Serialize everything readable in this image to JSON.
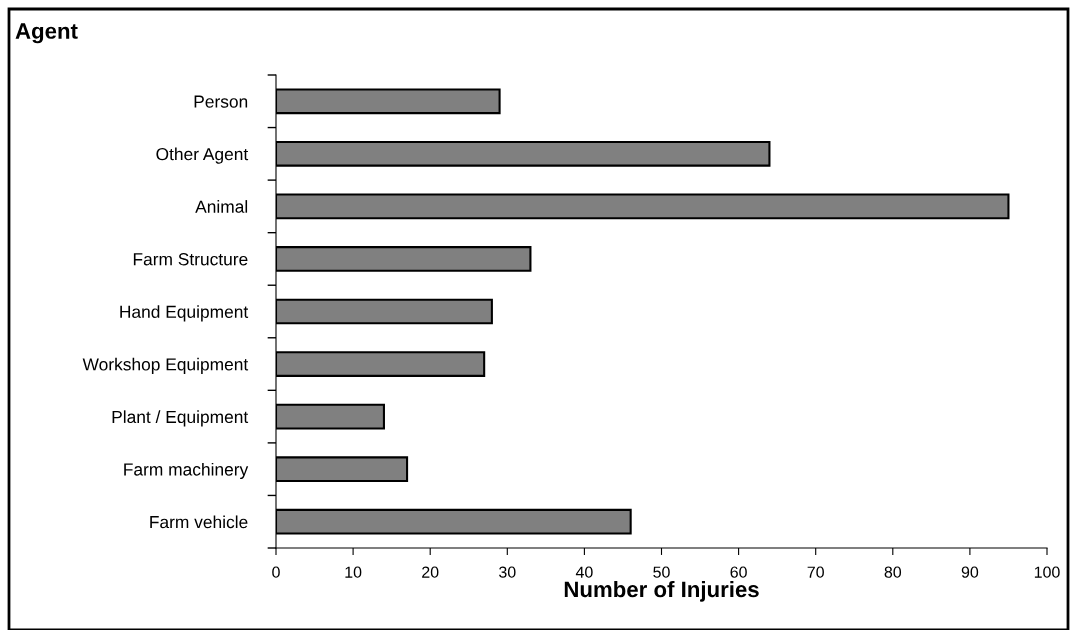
{
  "chart_data": {
    "type": "bar",
    "orientation": "horizontal",
    "xlabel": "Number of Injuries",
    "ylabel": "Agent",
    "categories": [
      "Person",
      "Other Agent",
      "Animal",
      "Farm Structure",
      "Hand Equipment",
      "Workshop Equipment",
      "Plant / Equipment",
      "Farm machinery",
      "Farm vehicle"
    ],
    "values": [
      29,
      64,
      95,
      33,
      28,
      27,
      14,
      17,
      46
    ],
    "color": "#808080",
    "xlim": [
      0,
      100
    ],
    "xticks": [
      0,
      10,
      20,
      30,
      40,
      50,
      60,
      70,
      80,
      90,
      100
    ],
    "grid": false,
    "legend": false
  }
}
